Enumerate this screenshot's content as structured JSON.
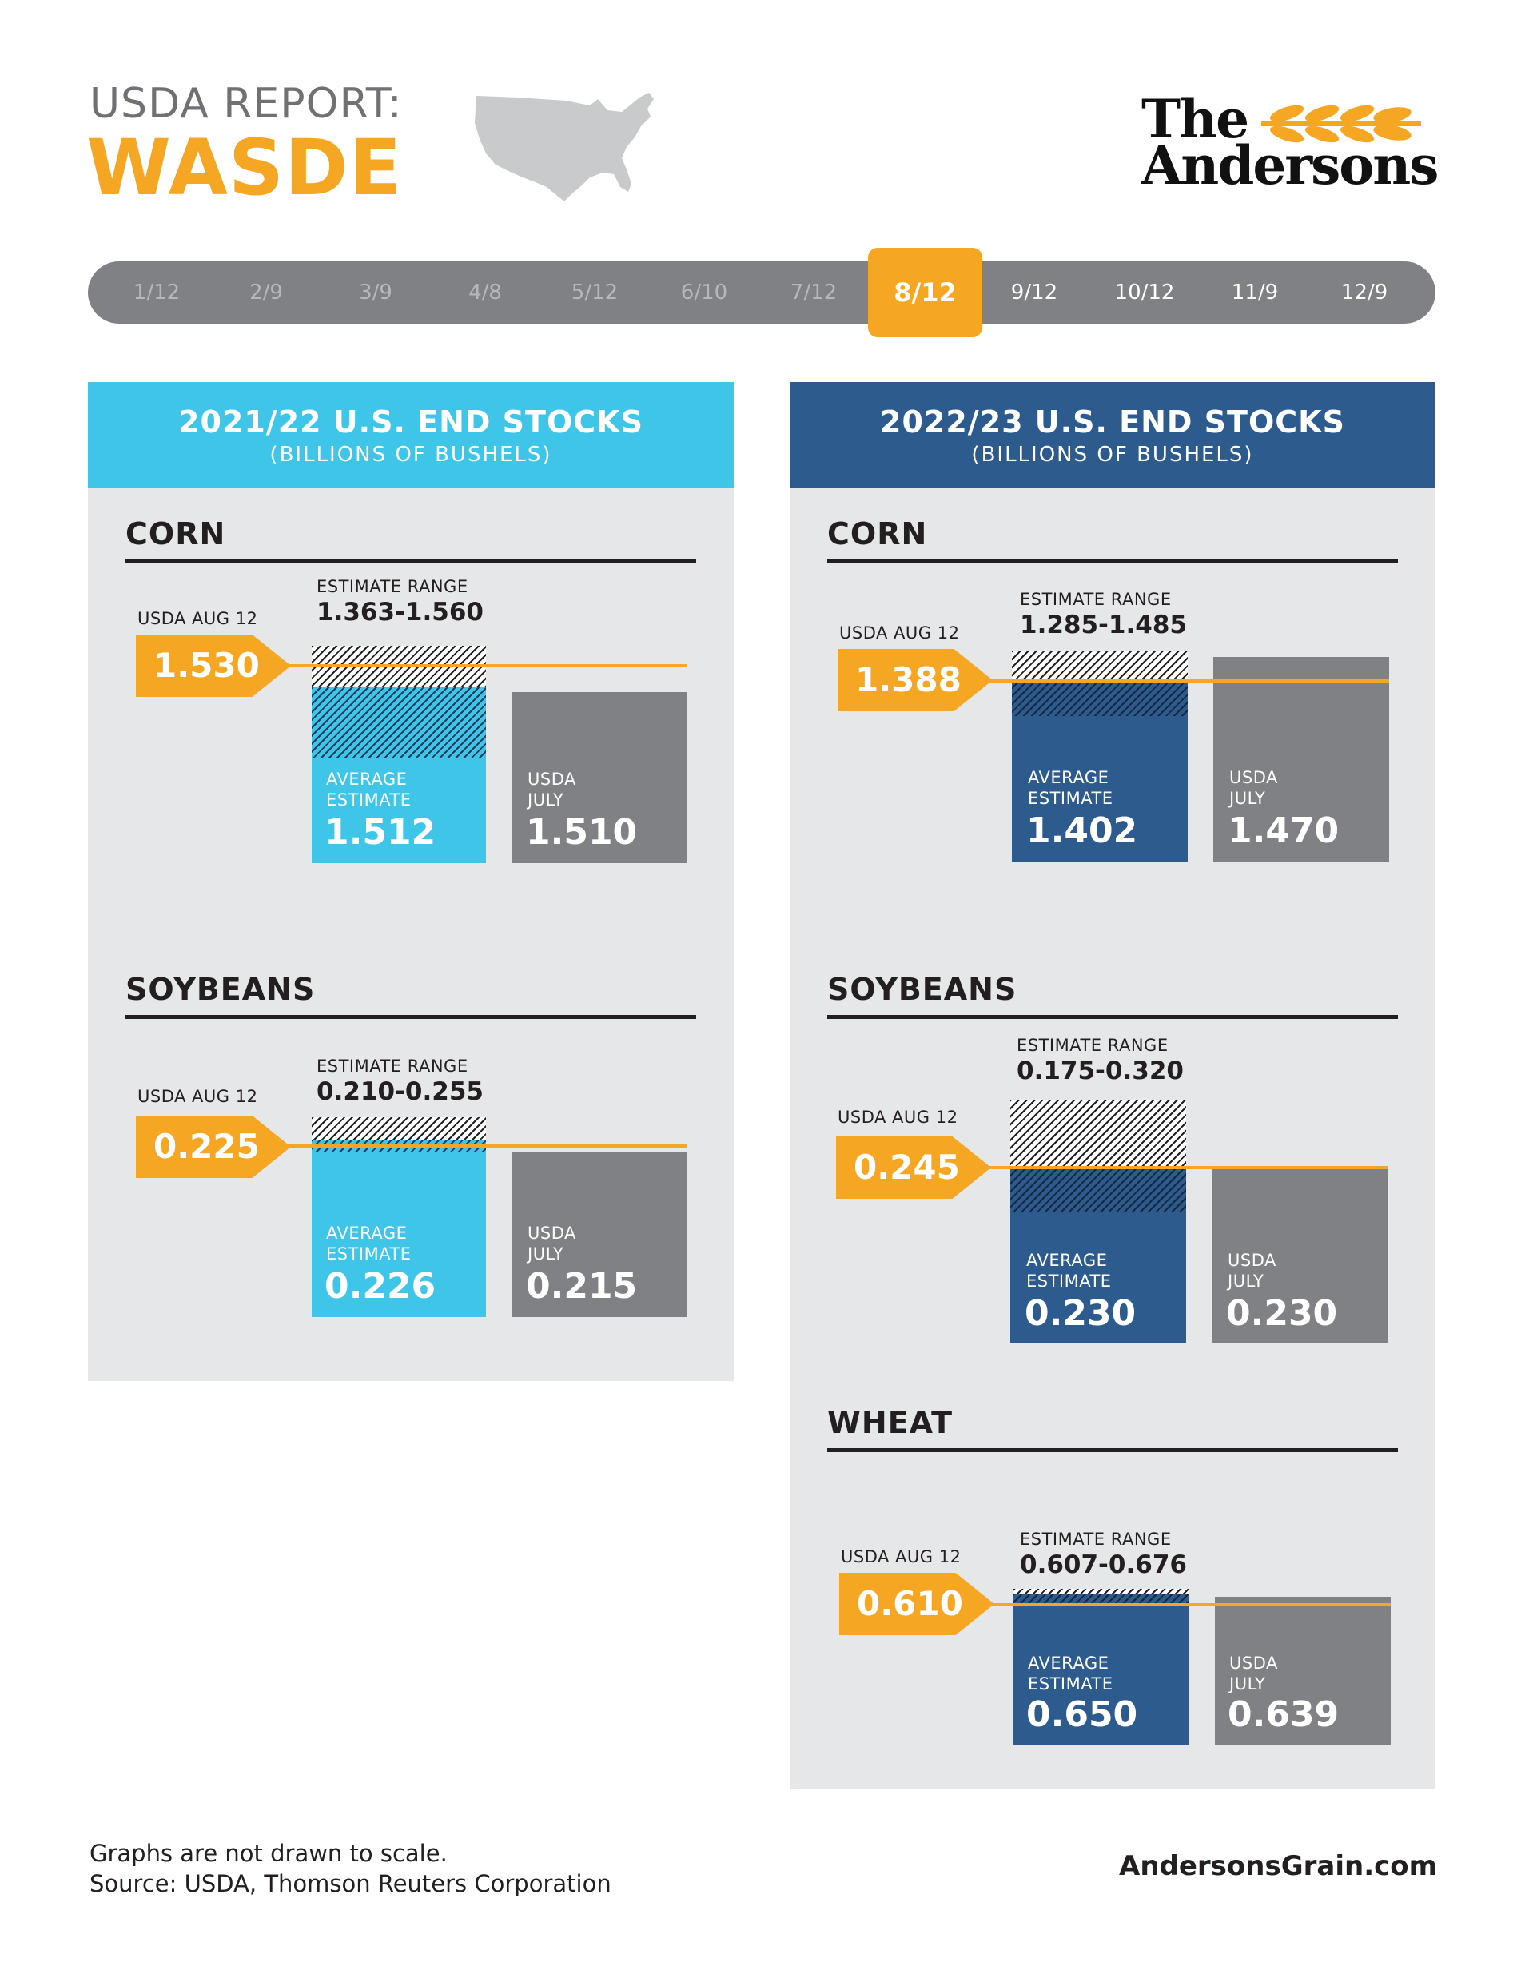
{
  "header": {
    "line1": "USDA REPORT:",
    "line2": "WASDE",
    "brand_line1": "The",
    "brand_line2": "Andersons"
  },
  "timeline": {
    "dates": [
      "1/12",
      "2/9",
      "3/9",
      "4/8",
      "5/12",
      "6/10",
      "7/12",
      "8/12",
      "9/12",
      "10/12",
      "11/9",
      "12/9"
    ],
    "active": "8/12"
  },
  "colors": {
    "orange": "#f5a623",
    "light_blue": "#3fc5e8",
    "navy": "#2d5b8e",
    "gray_bar": "#808184",
    "panel_bg": "#e6e7e8"
  },
  "labels": {
    "estimate_range": "ESTIMATE RANGE",
    "usda_aug": "USDA AUG 12",
    "avg_line1": "AVERAGE",
    "avg_line2": "ESTIMATE",
    "july_line1": "USDA",
    "july_line2": "JULY"
  },
  "panels": [
    {
      "title": "2021/22 U.S. END STOCKS",
      "subtitle": "(BILLIONS OF BUSHELS)",
      "commodities": [
        {
          "name": "CORN",
          "usda_aug": "1.530",
          "range": "1.363-1.560",
          "average": "1.512",
          "july": "1.510"
        },
        {
          "name": "SOYBEANS",
          "usda_aug": "0.225",
          "range": "0.210-0.255",
          "average": "0.226",
          "july": "0.215"
        }
      ]
    },
    {
      "title": "2022/23 U.S. END STOCKS",
      "subtitle": "(BILLIONS OF BUSHELS)",
      "commodities": [
        {
          "name": "CORN",
          "usda_aug": "1.388",
          "range": "1.285-1.485",
          "average": "1.402",
          "july": "1.470"
        },
        {
          "name": "SOYBEANS",
          "usda_aug": "0.245",
          "range": "0.175-0.320",
          "average": "0.230",
          "july": "0.230"
        },
        {
          "name": "WHEAT",
          "usda_aug": "0.610",
          "range": "0.607-0.676",
          "average": "0.650",
          "july": "0.639"
        }
      ]
    }
  ],
  "chart_data": [
    {
      "type": "bar",
      "title": "2021/22 U.S. END STOCKS",
      "subtitle": "(BILLIONS OF BUSHELS)",
      "commodity": "CORN",
      "categories": [
        "AVERAGE ESTIMATE",
        "USDA JULY"
      ],
      "values": [
        1.512,
        1.51
      ],
      "usda_aug_12": 1.53,
      "estimate_range": [
        1.363,
        1.56
      ]
    },
    {
      "type": "bar",
      "title": "2021/22 U.S. END STOCKS",
      "subtitle": "(BILLIONS OF BUSHELS)",
      "commodity": "SOYBEANS",
      "categories": [
        "AVERAGE ESTIMATE",
        "USDA JULY"
      ],
      "values": [
        0.226,
        0.215
      ],
      "usda_aug_12": 0.225,
      "estimate_range": [
        0.21,
        0.255
      ]
    },
    {
      "type": "bar",
      "title": "2022/23 U.S. END STOCKS",
      "subtitle": "(BILLIONS OF BUSHELS)",
      "commodity": "CORN",
      "categories": [
        "AVERAGE ESTIMATE",
        "USDA JULY"
      ],
      "values": [
        1.402,
        1.47
      ],
      "usda_aug_12": 1.388,
      "estimate_range": [
        1.285,
        1.485
      ]
    },
    {
      "type": "bar",
      "title": "2022/23 U.S. END STOCKS",
      "subtitle": "(BILLIONS OF BUSHELS)",
      "commodity": "SOYBEANS",
      "categories": [
        "AVERAGE ESTIMATE",
        "USDA JULY"
      ],
      "values": [
        0.23,
        0.23
      ],
      "usda_aug_12": 0.245,
      "estimate_range": [
        0.175,
        0.32
      ]
    },
    {
      "type": "bar",
      "title": "2022/23 U.S. END STOCKS",
      "subtitle": "(BILLIONS OF BUSHELS)",
      "commodity": "WHEAT",
      "categories": [
        "AVERAGE ESTIMATE",
        "USDA JULY"
      ],
      "values": [
        0.65,
        0.639
      ],
      "usda_aug_12": 0.61,
      "estimate_range": [
        0.607,
        0.676
      ]
    }
  ],
  "footer": {
    "note1": "Graphs are not drawn to scale.",
    "note2": "Source: USDA, Thomson Reuters Corporation",
    "site": "AndersonsGrain.com"
  }
}
